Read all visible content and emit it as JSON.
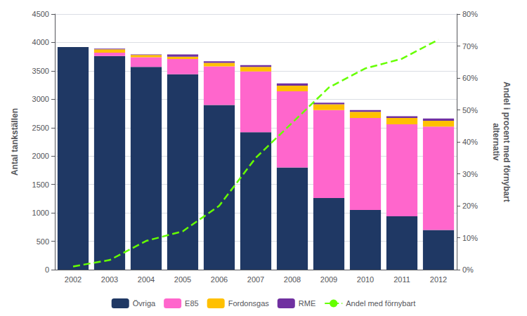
{
  "chart_data": {
    "type": "bar",
    "stacked": true,
    "categories": [
      "2002",
      "2003",
      "2004",
      "2005",
      "2006",
      "2007",
      "2008",
      "2009",
      "2010",
      "2011",
      "2012"
    ],
    "series": [
      {
        "name": "Övriga",
        "color": "#1f3864",
        "values": [
          3920,
          3760,
          3570,
          3440,
          2900,
          2420,
          1800,
          1260,
          1050,
          940,
          700
        ]
      },
      {
        "name": "E85",
        "color": "#ff66cc",
        "values": [
          0,
          60,
          170,
          270,
          680,
          1070,
          1340,
          1550,
          1620,
          1620,
          1820
        ]
      },
      {
        "name": "Fordonsgas",
        "color": "#ffc000",
        "values": [
          0,
          60,
          40,
          40,
          60,
          80,
          100,
          100,
          110,
          110,
          100
        ]
      },
      {
        "name": "RME",
        "color": "#7030a0",
        "values": [
          0,
          10,
          10,
          40,
          30,
          30,
          40,
          30,
          30,
          30,
          40
        ]
      },
      {
        "name": "Andel med förnybart",
        "type": "line",
        "line_style": "dashed",
        "color": "#66ff00",
        "axis": "y2",
        "values": [
          0.01,
          0.03,
          0.09,
          0.12,
          0.2,
          0.35,
          0.46,
          0.57,
          0.63,
          0.66,
          0.72
        ]
      }
    ],
    "ylabel": "Antal tankställen",
    "y2label": "Andel i procent med förnybart\nalternativ",
    "ylim": [
      0,
      4500
    ],
    "yticks": [
      0,
      500,
      1000,
      1500,
      2000,
      2500,
      3000,
      3500,
      4000,
      4500
    ],
    "y2lim": [
      0,
      0.8
    ],
    "y2ticks": [
      {
        "value": 0.0,
        "label": "0%"
      },
      {
        "value": 0.1,
        "label": "10%"
      },
      {
        "value": 0.2,
        "label": "20%"
      },
      {
        "value": 0.3,
        "label": "30%"
      },
      {
        "value": 0.4,
        "label": "40%"
      },
      {
        "value": 0.5,
        "label": "50%"
      },
      {
        "value": 0.6,
        "label": "60%"
      },
      {
        "value": 0.7,
        "label": "70%"
      },
      {
        "value": 0.8,
        "label": "80%"
      }
    ],
    "grid": true,
    "legend": "bottom"
  }
}
